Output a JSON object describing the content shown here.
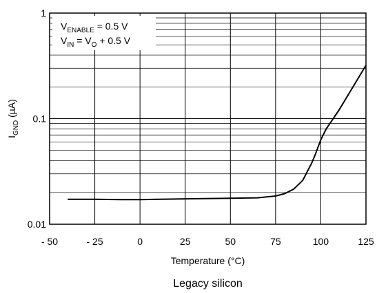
{
  "chart_data": {
    "type": "line",
    "xlabel": "Temperature (°C)",
    "ylabel": {
      "main": "I",
      "sub": "GND",
      "unit": " (µA)"
    },
    "caption": "Legacy silicon",
    "xlim": [
      -50,
      125
    ],
    "ylim": [
      0.01,
      1
    ],
    "yscale": "log",
    "grid": true,
    "x_ticks": [
      "- 50",
      "- 25",
      "0",
      "25",
      "50",
      "75",
      "100",
      "125"
    ],
    "x_tick_values": [
      -50,
      -25,
      0,
      25,
      50,
      75,
      100,
      125
    ],
    "y_ticks": [
      "0.01",
      "0.1",
      "1"
    ],
    "y_tick_values": [
      0.01,
      0.1,
      1
    ],
    "annotations": [
      {
        "parts": [
          [
            "V",
            ""
          ],
          [
            "ENABLE",
            "sub"
          ],
          [
            " = 0.5 V",
            ""
          ]
        ]
      },
      {
        "parts": [
          [
            "V",
            ""
          ],
          [
            "IN",
            "sub"
          ],
          [
            " = V",
            ""
          ],
          [
            "O",
            "sub"
          ],
          [
            " + 0.5 V",
            ""
          ]
        ]
      }
    ],
    "series": [
      {
        "x": [
          -40,
          -25,
          -10,
          0,
          10,
          25,
          50,
          65,
          75,
          80,
          85,
          90,
          95,
          97,
          100,
          103,
          110,
          125
        ],
        "y": [
          0.0172,
          0.0172,
          0.0171,
          0.0171,
          0.0172,
          0.0174,
          0.0176,
          0.0178,
          0.0185,
          0.0195,
          0.0215,
          0.026,
          0.038,
          0.046,
          0.063,
          0.08,
          0.12,
          0.32
        ]
      }
    ]
  }
}
